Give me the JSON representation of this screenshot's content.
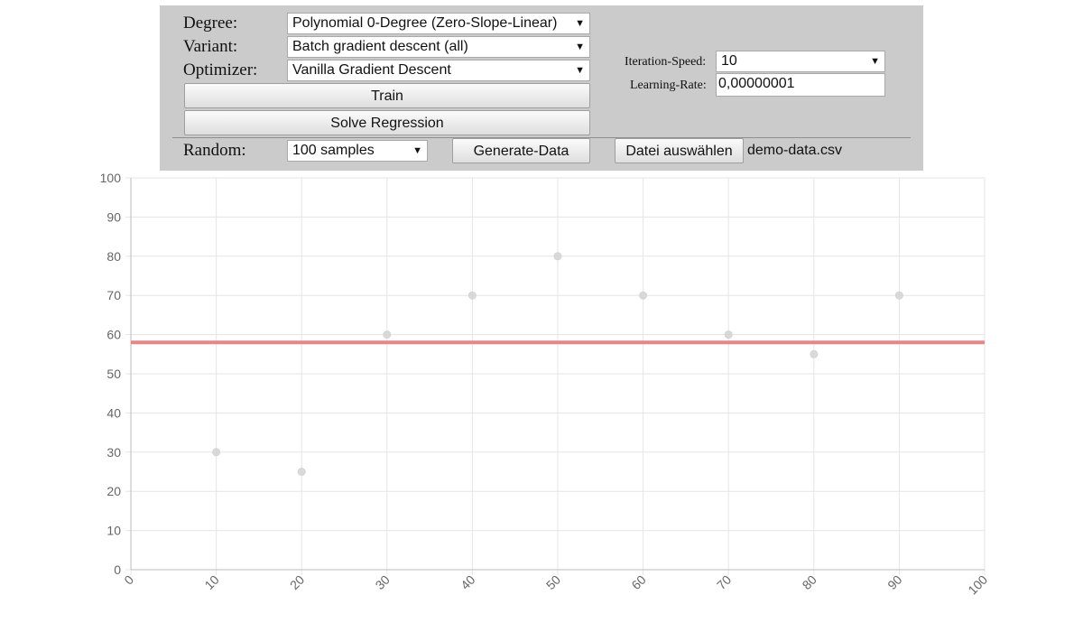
{
  "controls": {
    "degree": {
      "label": "Degree:",
      "value": "Polynomial 0-Degree (Zero-Slope-Linear)"
    },
    "variant": {
      "label": "Variant:",
      "value": "Batch gradient descent (all)"
    },
    "optimizer": {
      "label": "Optimizer:",
      "value": "Vanilla Gradient Descent"
    },
    "train_label": "Train",
    "solve_label": "Solve Regression",
    "iteration_speed": {
      "label": "Iteration-Speed:",
      "value": "10"
    },
    "learning_rate": {
      "label": "Learning-Rate:",
      "value": "0,00000001"
    },
    "random": {
      "label": "Random:",
      "value": "100 samples"
    },
    "generate_label": "Generate-Data",
    "file_button_label": "Datei auswählen",
    "file_name": "demo-data.csv"
  },
  "icons": {
    "dropdown": "chevron-down-icon"
  },
  "colors": {
    "panel_bg": "#cbcbcb",
    "point_color": "#d3d3d3",
    "regression_line": "#e88585",
    "grid": "#e5e5e5",
    "axis": "#bdbdbd"
  },
  "chart_data": {
    "type": "scatter",
    "xlim": [
      0,
      100
    ],
    "ylim": [
      0,
      100
    ],
    "x_ticks": [
      0,
      10,
      20,
      30,
      40,
      50,
      60,
      70,
      80,
      90,
      100
    ],
    "y_ticks": [
      0,
      10,
      20,
      30,
      40,
      50,
      60,
      70,
      80,
      90,
      100
    ],
    "grid": true,
    "points": [
      {
        "x": 10,
        "y": 30
      },
      {
        "x": 20,
        "y": 25
      },
      {
        "x": 30,
        "y": 60
      },
      {
        "x": 40,
        "y": 70
      },
      {
        "x": 50,
        "y": 80
      },
      {
        "x": 60,
        "y": 70
      },
      {
        "x": 70,
        "y": 60
      },
      {
        "x": 80,
        "y": 55
      },
      {
        "x": 90,
        "y": 70
      }
    ],
    "regression_line": {
      "degree": 0,
      "y": 58
    }
  }
}
